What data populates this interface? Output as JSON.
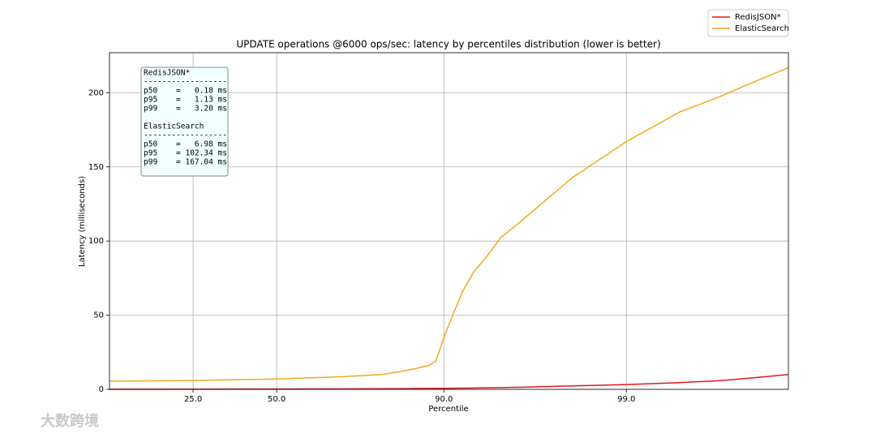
{
  "chart_data": {
    "type": "line",
    "title": "UPDATE operations @6000 ops/sec: latency by percentiles distribution (lower is better)",
    "xlabel": "Percentile",
    "ylabel": "Latency (milliseconds)",
    "xscale": "logit",
    "grid": true,
    "legend": "upper right outside",
    "x": [
      10,
      25,
      50,
      70,
      80,
      85,
      88,
      89,
      90,
      91,
      92,
      93,
      94,
      95,
      96,
      97,
      98,
      99,
      99.5,
      99.7,
      99.8,
      99.88
    ],
    "series": [
      {
        "name": "RedisJSON*",
        "color": "#e3191c",
        "values": [
          0.1,
          0.13,
          0.18,
          0.3,
          0.4,
          0.5,
          0.6,
          0.65,
          0.7,
          0.75,
          0.8,
          0.9,
          1.0,
          1.13,
          1.4,
          1.8,
          2.3,
          3.2,
          4.5,
          5.8,
          7.5,
          10
        ]
      },
      {
        "name": "ElasticSearch",
        "color": "#f2a91c",
        "values": [
          5.5,
          6,
          6.98,
          8.5,
          10,
          13,
          16,
          19,
          35,
          50,
          66,
          79,
          89,
          102.34,
          112,
          125,
          143,
          167.04,
          187,
          197,
          206,
          217
        ]
      }
    ],
    "xlim": [
      10,
      99.88
    ],
    "ylim": [
      0,
      227
    ],
    "xticks": [
      {
        "value": 25,
        "label": "25.0"
      },
      {
        "value": 50,
        "label": "50.0"
      },
      {
        "value": 90,
        "label": "90.0"
      },
      {
        "value": 99,
        "label": "99.0"
      }
    ],
    "yticks": [
      0,
      50,
      100,
      150,
      200
    ],
    "annotation": [
      "RedisJSON*",
      "------------------",
      "p50    =   0.18 ms",
      "p95    =   1.13 ms",
      "p99    =   3.20 ms",
      "ElasticSearch",
      "------------------",
      "p50    =   6.98 ms",
      "p95    = 102.34 ms",
      "p99    = 167.04 ms"
    ],
    "watermark": "大数跨境"
  }
}
